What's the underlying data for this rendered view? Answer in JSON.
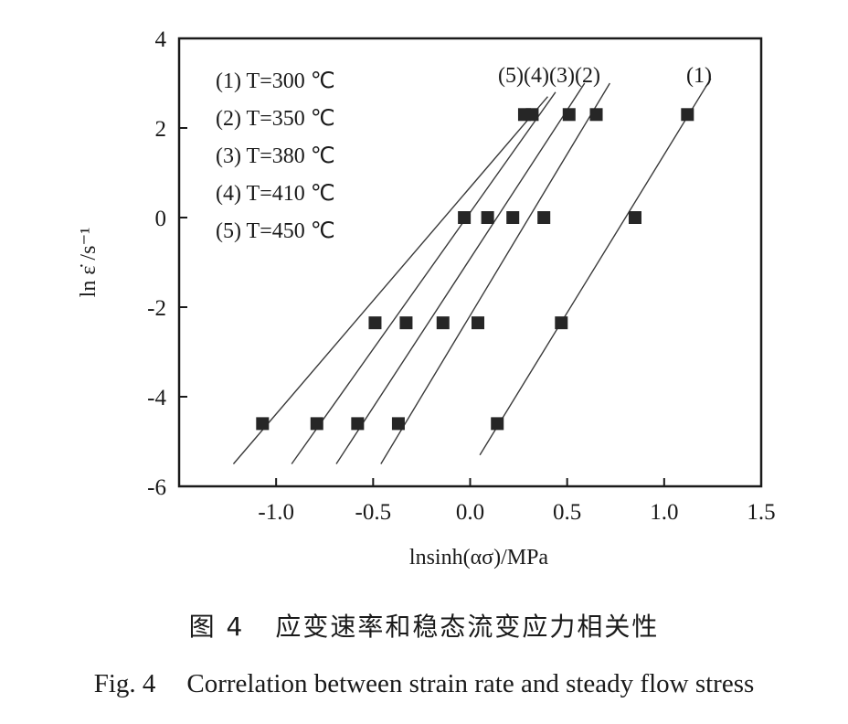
{
  "chart_data": {
    "type": "scatter",
    "title": "",
    "xlabel": "lnsinh(ασ)/MPa",
    "ylabel": "ln ε̇ /s⁻¹",
    "xlim": [
      -1.5,
      1.5
    ],
    "ylim": [
      -6,
      4
    ],
    "xticks": [
      "-1.0",
      "-0.5",
      "0.0",
      "0.5",
      "1.0",
      "1.5"
    ],
    "yticks": [
      "4",
      "2",
      "0",
      "-2",
      "-4",
      "-6"
    ],
    "legend": [
      "(1) T=300 ℃",
      "(2) T=350 ℃",
      "(3) T=380 ℃",
      "(4) T=410 ℃",
      "(5) T=450 ℃"
    ],
    "legend_position": "top-left",
    "grid": false,
    "series": [
      {
        "name": "(1)",
        "points": [
          [
            0.14,
            -4.6
          ],
          [
            0.47,
            -2.35
          ],
          [
            0.85,
            0.0
          ],
          [
            1.12,
            2.3
          ]
        ],
        "fit": [
          [
            0.05,
            -5.3
          ],
          [
            1.24,
            3.1
          ]
        ]
      },
      {
        "name": "(2)",
        "points": [
          [
            -0.37,
            -4.6
          ],
          [
            0.04,
            -2.35
          ],
          [
            0.38,
            0.0
          ],
          [
            0.65,
            2.3
          ]
        ],
        "fit": [
          [
            -0.46,
            -5.5
          ],
          [
            0.72,
            3.0
          ]
        ]
      },
      {
        "name": "(3)",
        "points": [
          [
            -0.58,
            -4.6
          ],
          [
            -0.14,
            -2.35
          ],
          [
            0.22,
            0.0
          ],
          [
            0.51,
            2.3
          ]
        ],
        "fit": [
          [
            -0.69,
            -5.5
          ],
          [
            0.59,
            3.0
          ]
        ]
      },
      {
        "name": "(4)",
        "points": [
          [
            -0.79,
            -4.6
          ],
          [
            -0.33,
            -2.35
          ],
          [
            0.09,
            0.0
          ],
          [
            0.32,
            2.3
          ]
        ],
        "fit": [
          [
            -0.92,
            -5.5
          ],
          [
            0.44,
            2.8
          ]
        ]
      },
      {
        "name": "(5)",
        "points": [
          [
            -1.07,
            -4.6
          ],
          [
            -0.49,
            -2.35
          ],
          [
            -0.03,
            0.0
          ],
          [
            0.28,
            2.3
          ]
        ],
        "fit": [
          [
            -1.22,
            -5.5
          ],
          [
            0.4,
            2.7
          ]
        ]
      }
    ],
    "series_labels": "(5)(4)(3)(2)",
    "series_label_1": "(1)"
  },
  "caption": {
    "cn_number": "图 4",
    "cn_text": "应变速率和稳态流变应力相关性",
    "en_number": "Fig. 4",
    "en_text": "Correlation between strain rate and steady flow stress"
  }
}
